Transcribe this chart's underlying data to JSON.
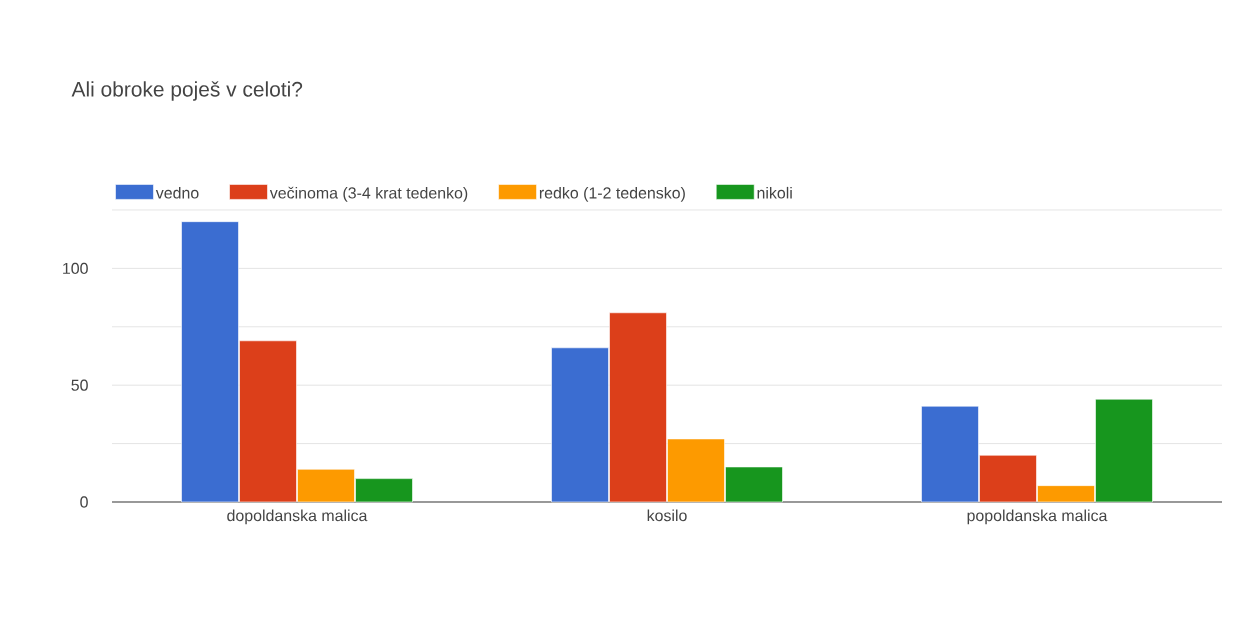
{
  "chart_data": {
    "type": "bar",
    "title": "Ali obroke poješ v celoti?",
    "categories": [
      "dopoldanska malica",
      "kosilo",
      "popoldanska malica"
    ],
    "series": [
      {
        "name": "vedno",
        "color": "#3b6dd1",
        "values": [
          120,
          66,
          41
        ]
      },
      {
        "name": "večinoma (3-4 krat tedenko)",
        "color": "#dc3f1a",
        "values": [
          69,
          81,
          20
        ]
      },
      {
        "name": "redko (1-2 tedensko)",
        "color": "#fd9a00",
        "values": [
          14,
          27,
          7
        ]
      },
      {
        "name": "nikoli",
        "color": "#17961e",
        "values": [
          10,
          15,
          44
        ]
      }
    ],
    "ylim": [
      0,
      125
    ],
    "yticks": [
      0,
      {
        "value": 25,
        "label": null
      },
      50,
      {
        "value": 75,
        "label": null
      },
      100,
      {
        "value": 125,
        "label": null
      }
    ],
    "grid": "y",
    "legend": "top left"
  }
}
